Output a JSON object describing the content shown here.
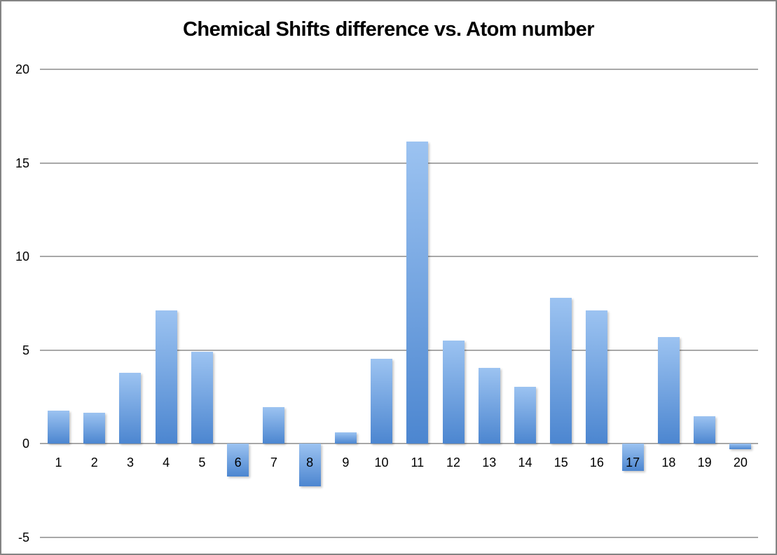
{
  "chart_data": {
    "type": "bar",
    "title": "Chemical Shifts difference vs. Atom number",
    "xlabel": "",
    "ylabel": "",
    "categories": [
      "1",
      "2",
      "3",
      "4",
      "5",
      "6",
      "7",
      "8",
      "9",
      "10",
      "11",
      "12",
      "13",
      "14",
      "15",
      "16",
      "17",
      "18",
      "19",
      "20"
    ],
    "values": [
      1.75,
      1.65,
      3.8,
      7.1,
      4.9,
      -1.75,
      1.95,
      -2.3,
      0.6,
      4.55,
      16.15,
      5.5,
      4.05,
      3.05,
      7.8,
      7.1,
      -1.45,
      5.7,
      1.45,
      -0.3
    ],
    "y_ticks": [
      20,
      15,
      10,
      5,
      0,
      -5
    ],
    "ylim": [
      -5,
      20
    ],
    "grid": true,
    "legend": false,
    "series_name": "",
    "bar_gradient_top": "#9cc3f1",
    "bar_gradient_bottom": "#4c86d0",
    "gridline_color_dark": "#8a8a8a",
    "gridline_color_light": "#c6c6c6",
    "border_color": "#848484",
    "background_color": "#ffffff",
    "title_color": "#000000",
    "tick_color": "#000000"
  }
}
